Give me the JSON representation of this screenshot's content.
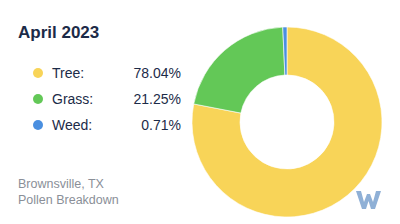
{
  "chart_data": {
    "type": "pie",
    "title": "April 2023",
    "categories": [
      "Tree:",
      "Grass:",
      "Weed:"
    ],
    "values": [
      78.04,
      21.25,
      0.71
    ],
    "value_labels": [
      "78.04%",
      "21.25%",
      "0.71%"
    ],
    "colors": [
      "#f8d458",
      "#63c857",
      "#4a8fe0"
    ],
    "legend": "left",
    "annotations": [
      "Brownsville, TX",
      "Pollen Breakdown"
    ]
  }
}
